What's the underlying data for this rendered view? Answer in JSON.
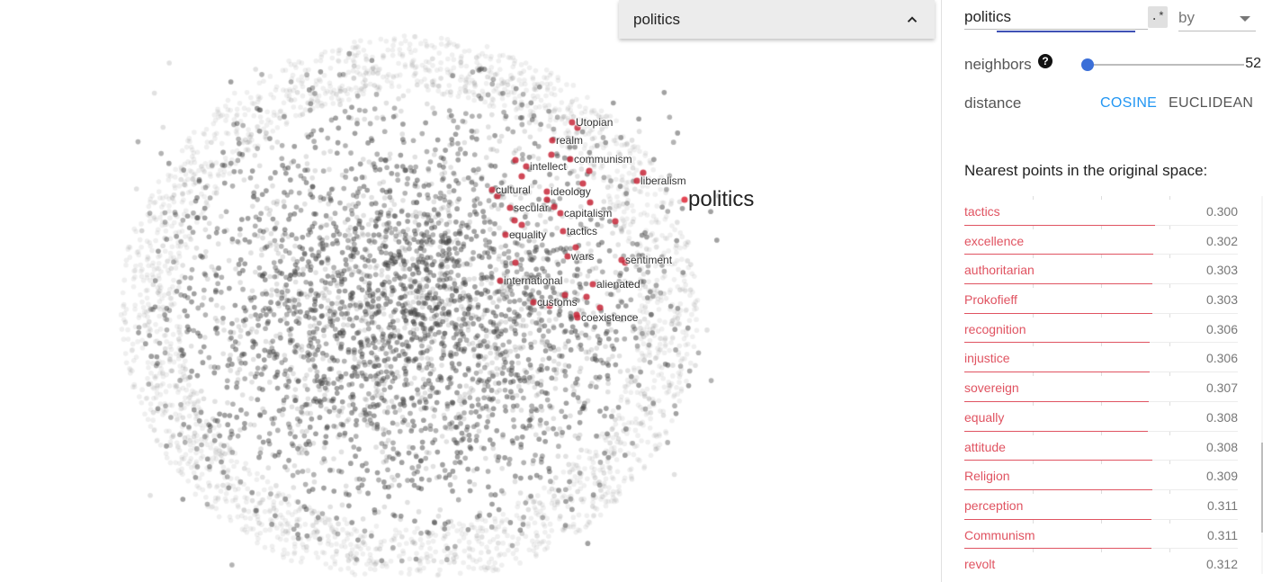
{
  "chart_data": {
    "type": "scatter",
    "highlighted_point": "politics",
    "neighbor_labels": [
      "Utopian",
      "realm",
      "communism",
      "intellect",
      "liberalism",
      "cultural",
      "ideology",
      "secular",
      "capitalism",
      "equality",
      "tactics",
      "wars",
      "sentiment",
      "international",
      "alienated",
      "customs",
      "coexistence"
    ],
    "background_color": "#555555",
    "highlight_color": "#c8283a"
  },
  "selection": {
    "label": "politics",
    "icon": "chevron-up-icon"
  },
  "search": {
    "value": "politics",
    "regex_label": ".*",
    "by_label": "by"
  },
  "neighbors": {
    "label": "neighbors",
    "help_icon": "?",
    "value": "52",
    "slider_fraction": 0.0
  },
  "distance": {
    "label": "distance",
    "cosine_label": "COSINE",
    "euclidean_label": "EUCLIDEAN",
    "active": "COSINE"
  },
  "nearest": {
    "title": "Nearest points in the original space:",
    "items": [
      {
        "word": "tactics",
        "value": "0.300"
      },
      {
        "word": "excellence",
        "value": "0.302"
      },
      {
        "word": "authoritarian",
        "value": "0.303"
      },
      {
        "word": "Prokofieff",
        "value": "0.303"
      },
      {
        "word": "recognition",
        "value": "0.306"
      },
      {
        "word": "injustice",
        "value": "0.306"
      },
      {
        "word": "sovereign",
        "value": "0.307"
      },
      {
        "word": "equally",
        "value": "0.308"
      },
      {
        "word": "attitude",
        "value": "0.308"
      },
      {
        "word": "Religion",
        "value": "0.309"
      },
      {
        "word": "perception",
        "value": "0.311"
      },
      {
        "word": "Communism",
        "value": "0.311"
      },
      {
        "word": "revolt",
        "value": "0.312"
      }
    ]
  }
}
